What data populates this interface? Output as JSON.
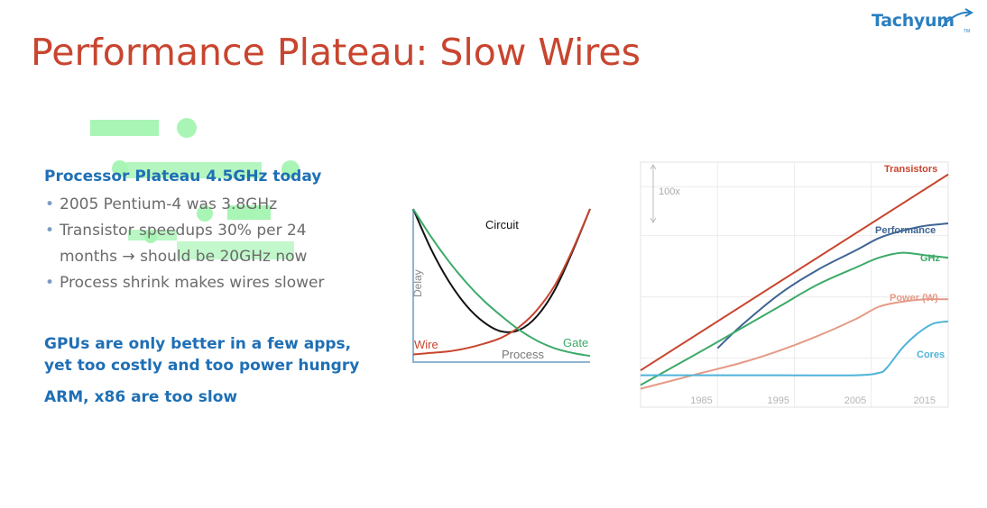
{
  "slide": {
    "title": "Performance Plateau: Slow Wires",
    "logo_text": "Tachyum",
    "logo_tm": "TM"
  },
  "left": {
    "heading1": "Processor Plateau 4.5GHz today",
    "bullets": [
      "2005 Pentium-4 was 3.8GHz",
      "Transistor speedups 30% per 24 months → should be 20GHz now",
      "Process shrink makes wires slower"
    ],
    "heading2_line1": "GPUs are only better in a few apps,",
    "heading2_line2": "yet too costly and too power hungry",
    "heading3": "ARM, x86 are too slow"
  },
  "colors": {
    "title": "#c8452f",
    "heading": "#1f6fb5",
    "body": "#6b6b6b",
    "highlight": "#a8f5b5",
    "red": "#c8452f",
    "green": "#3caa68",
    "black": "#111111",
    "navy": "#3f6593",
    "salmon": "#e59a86",
    "cyan": "#4eb3d9"
  },
  "chart_data": [
    {
      "type": "line",
      "title": "",
      "xlabel": "Process",
      "ylabel": "Delay",
      "series": [
        {
          "name": "Circuit",
          "x": [
            0,
            1,
            2,
            3,
            4,
            5,
            6,
            7,
            8,
            9,
            10
          ],
          "values": [
            10,
            7.4,
            5.3,
            3.7,
            2.6,
            2.0,
            2.1,
            3.0,
            4.7,
            7.2,
            10
          ]
        },
        {
          "name": "Wire",
          "x": [
            0,
            1,
            2,
            3,
            4,
            5,
            6,
            7,
            8,
            9,
            10
          ],
          "values": [
            0.5,
            0.6,
            0.7,
            0.9,
            1.2,
            1.6,
            2.3,
            3.4,
            5.0,
            7.3,
            10
          ]
        },
        {
          "name": "Gate",
          "x": [
            0,
            1,
            2,
            3,
            4,
            5,
            6,
            7,
            8,
            9,
            10
          ],
          "values": [
            10,
            8.2,
            6.6,
            5.2,
            4.0,
            3.0,
            2.1,
            1.4,
            0.9,
            0.6,
            0.4
          ]
        }
      ]
    },
    {
      "type": "line",
      "title": "",
      "annotations": [
        "100x"
      ],
      "x_ticks": [
        "1985",
        "1995",
        "2005",
        "2015"
      ],
      "xlim": [
        1977,
        2017
      ],
      "ylim": [
        0,
        10
      ],
      "grid": true,
      "series": [
        {
          "name": "Transistors",
          "x": [
            1977,
            2017
          ],
          "values": [
            1.5,
            9.5
          ]
        },
        {
          "name": "Performance",
          "x": [
            1987,
            1990,
            1995,
            2000,
            2005,
            2008,
            2011,
            2014,
            2017
          ],
          "values": [
            2.4,
            3.3,
            4.6,
            5.6,
            6.4,
            6.9,
            7.2,
            7.4,
            7.5
          ]
        },
        {
          "name": "GHz",
          "x": [
            1977,
            1985,
            1990,
            1995,
            2000,
            2005,
            2008,
            2011,
            2014,
            2017
          ],
          "values": [
            0.9,
            2.3,
            3.2,
            4.1,
            5.0,
            5.7,
            6.1,
            6.3,
            6.2,
            6.1
          ]
        },
        {
          "name": "Power (W)",
          "x": [
            1977,
            1985,
            1990,
            1995,
            2000,
            2005,
            2008,
            2011,
            2014,
            2017
          ],
          "values": [
            0.75,
            1.4,
            1.8,
            2.3,
            2.9,
            3.6,
            4.1,
            4.3,
            4.4,
            4.4
          ]
        },
        {
          "name": "Cores",
          "x": [
            1977,
            1985,
            1995,
            2005,
            2008,
            2009,
            2011,
            2013,
            2015,
            2017
          ],
          "values": [
            1.3,
            1.3,
            1.3,
            1.3,
            1.4,
            1.6,
            2.4,
            3.0,
            3.4,
            3.5
          ]
        }
      ]
    }
  ]
}
